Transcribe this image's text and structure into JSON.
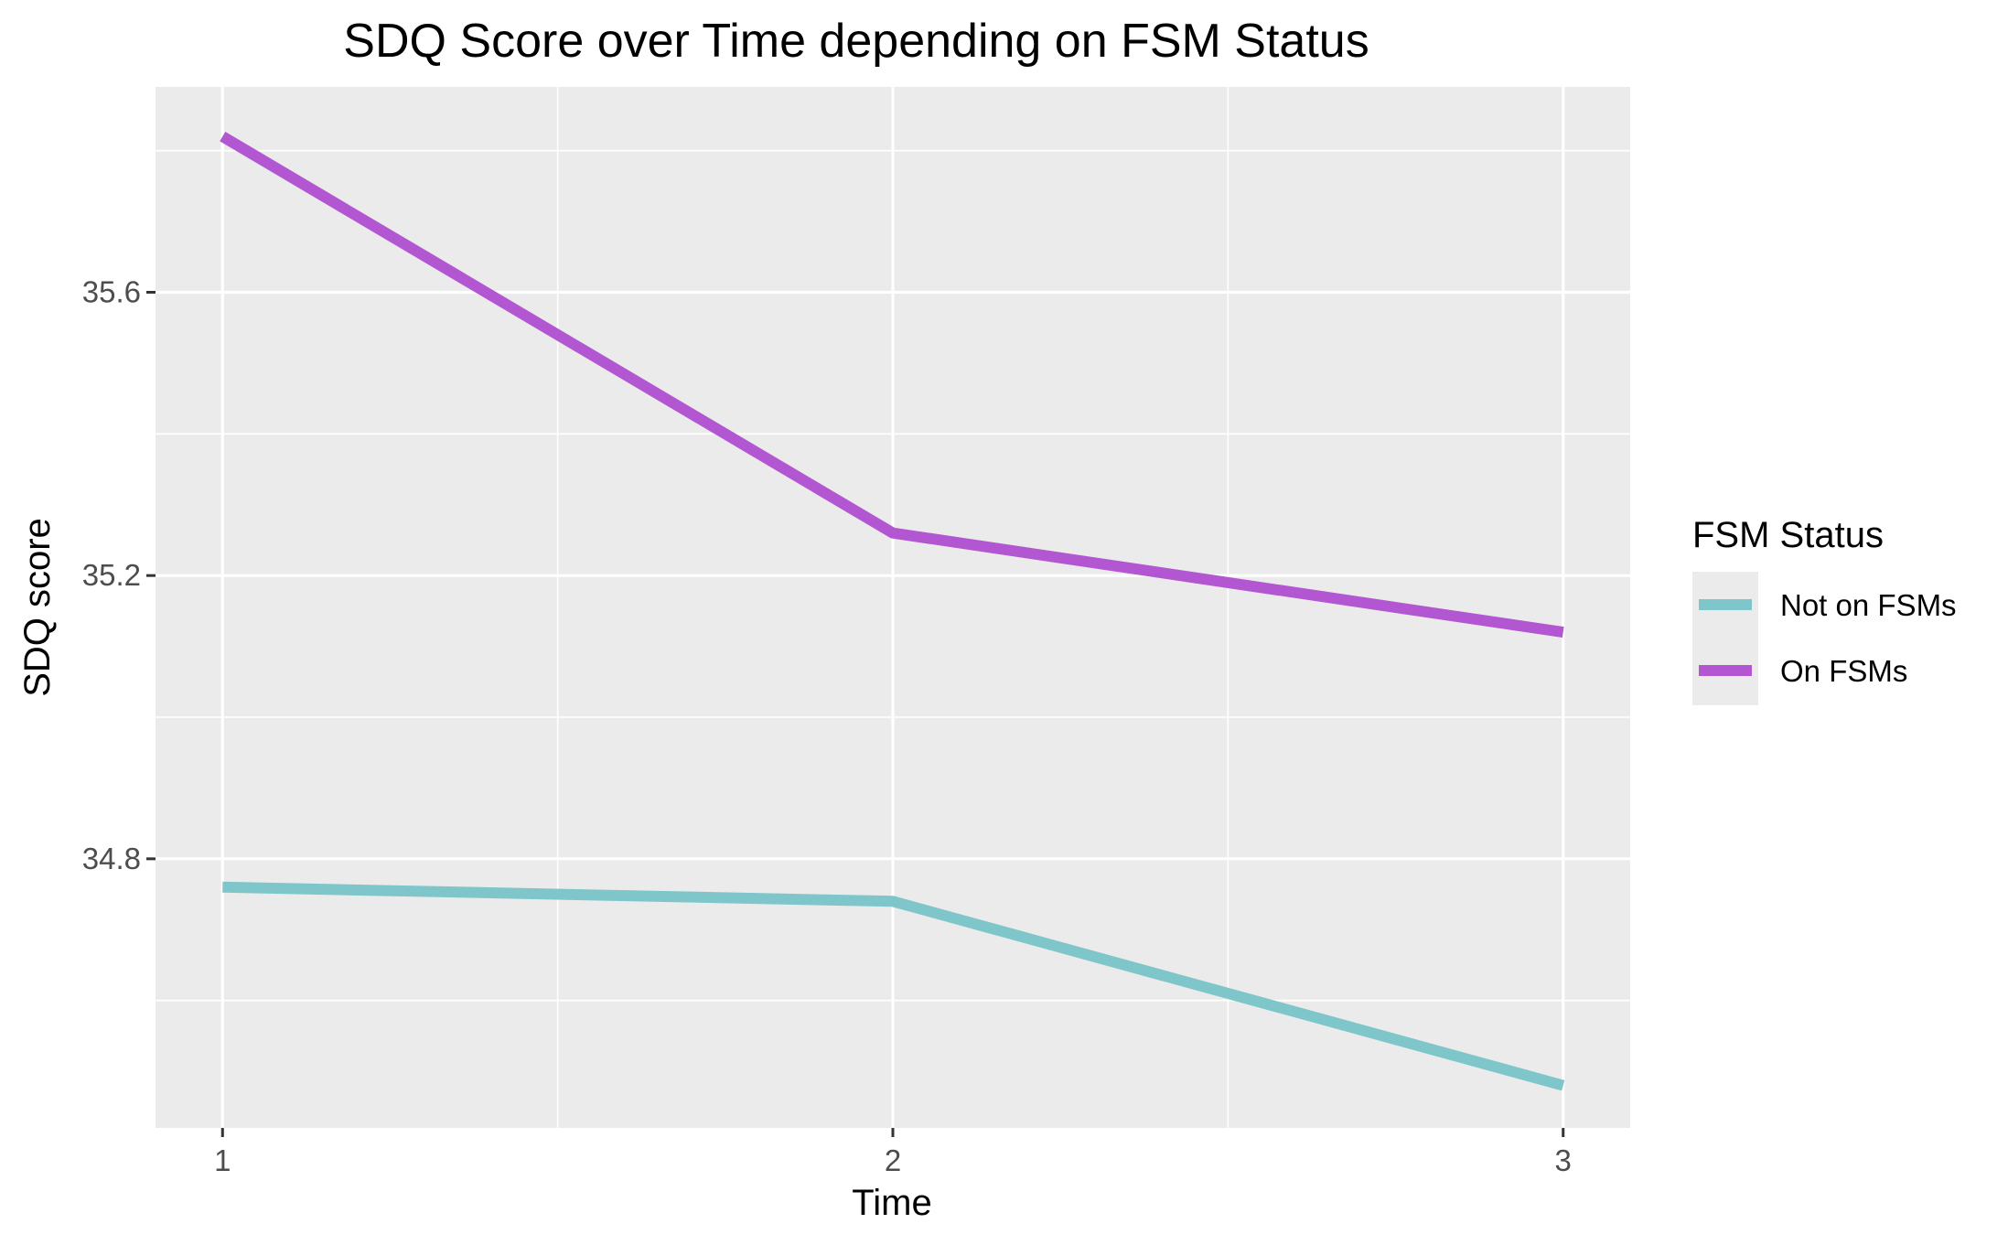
{
  "chart_data": {
    "type": "line",
    "title": "SDQ Score over Time depending on FSM Status",
    "xlabel": "Time",
    "ylabel": "SDQ score",
    "x": [
      1,
      2,
      3
    ],
    "x_ticks": [
      "1",
      "2",
      "3"
    ],
    "xlim": [
      0.9,
      3.1
    ],
    "y_ticks": [
      "34.8",
      "35.2",
      "35.6"
    ],
    "ylim": [
      34.42,
      35.89
    ],
    "grid": true,
    "legend": {
      "title": "FSM Status",
      "placement": "right"
    },
    "series": [
      {
        "name": "Not on FSMs",
        "values": [
          34.76,
          34.74,
          34.48
        ],
        "color": "#7fc6cb"
      },
      {
        "name": "On FSMs",
        "values": [
          35.82,
          35.26,
          35.12
        ],
        "color": "#b256d1"
      }
    ]
  }
}
